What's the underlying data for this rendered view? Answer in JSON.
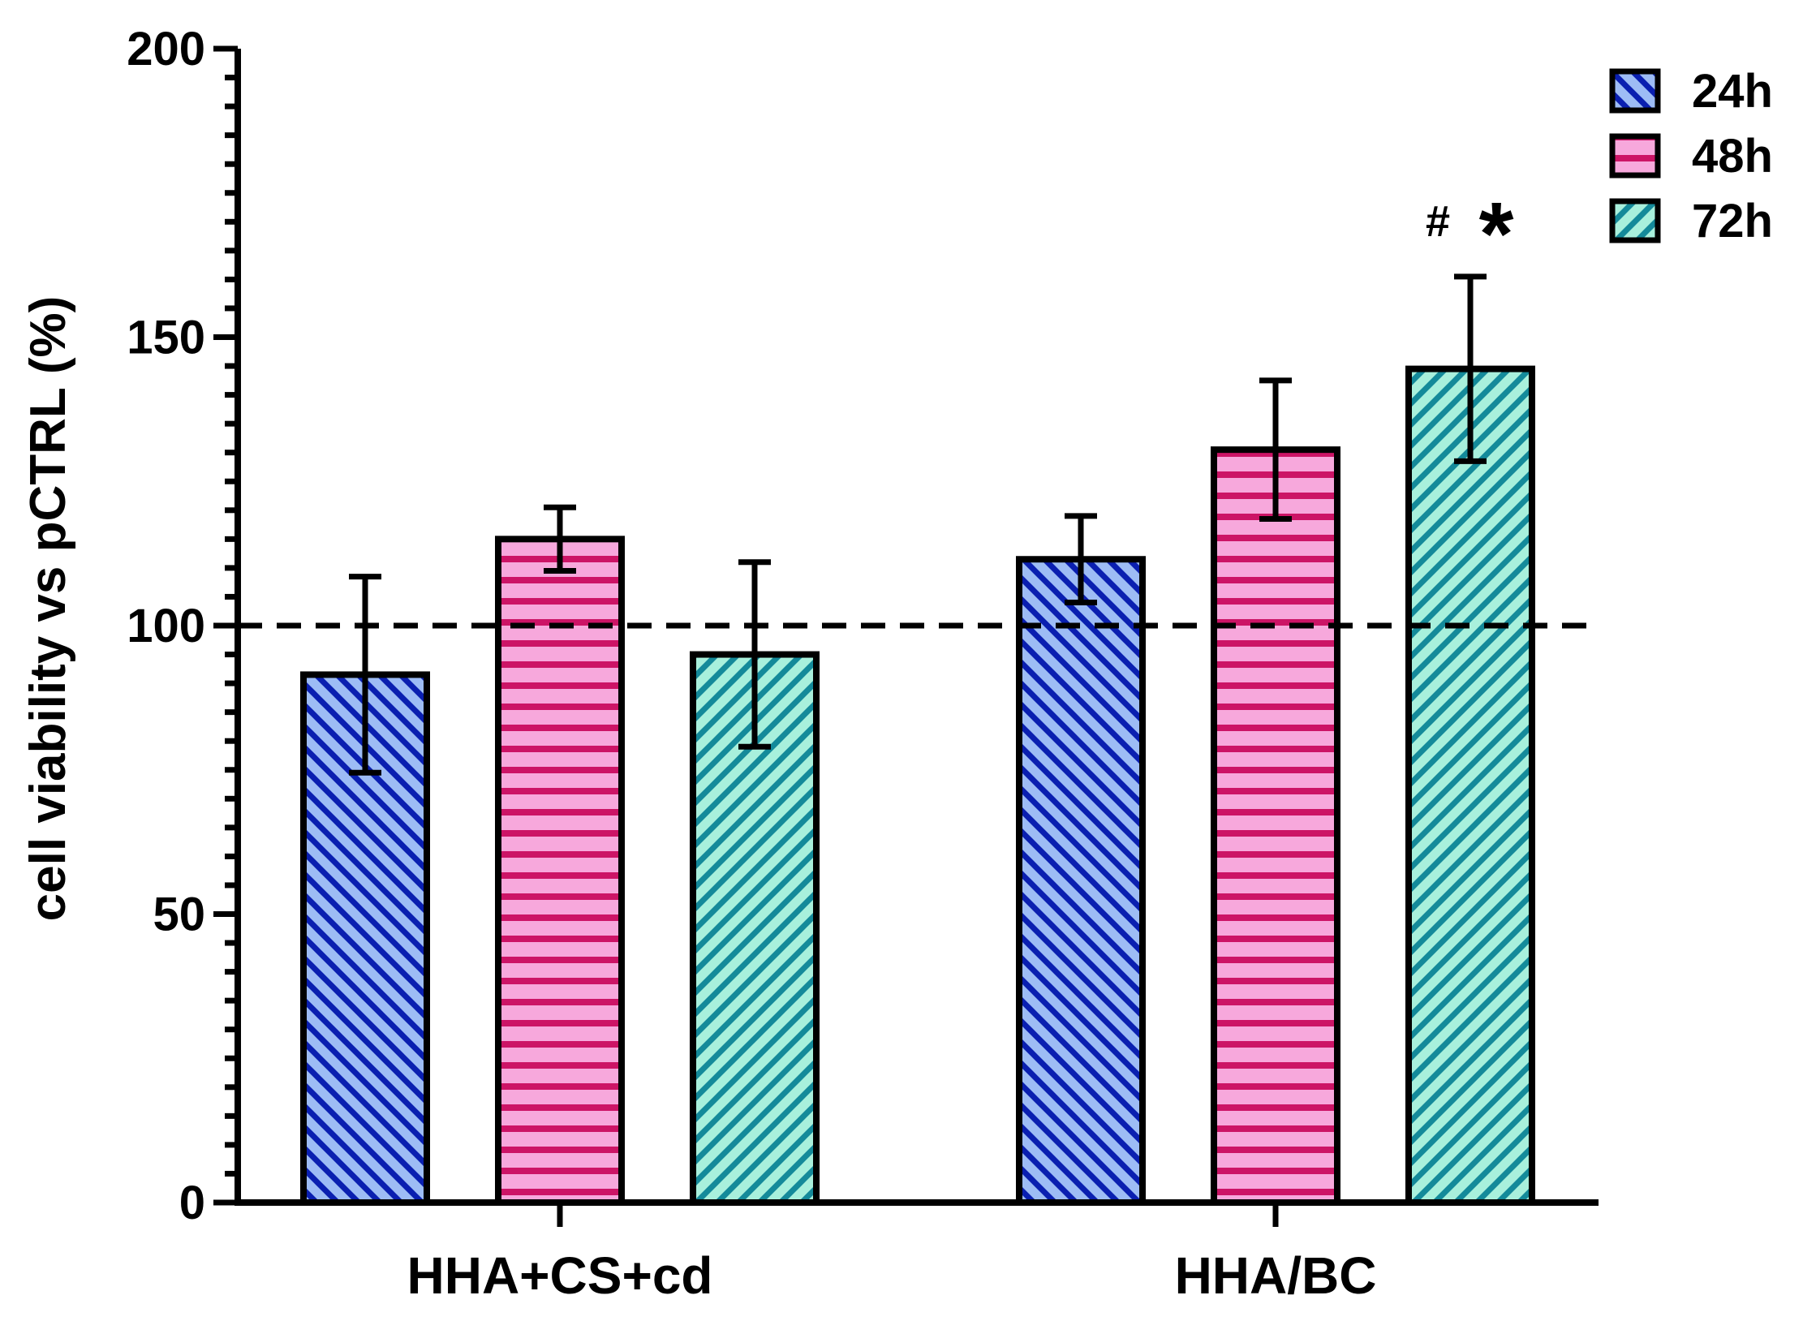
{
  "chart_data": {
    "type": "bar",
    "title": "",
    "xlabel": "",
    "ylabel": "cell viability vs pCTRL (%)",
    "ylim": [
      0,
      200
    ],
    "yticks": [
      0,
      50,
      100,
      150,
      200
    ],
    "reference_line": 100,
    "categories": [
      "HHA+CS+cd",
      "HHA/BC"
    ],
    "series": [
      {
        "name": "24h",
        "values": [
          91.5,
          111.5
        ],
        "errors": [
          17,
          7.5
        ],
        "fill": "#9dbcf5",
        "stroke": "#0a1fb0",
        "pattern": "diag-down"
      },
      {
        "name": "48h",
        "values": [
          115,
          130.5
        ],
        "errors": [
          5.5,
          12
        ],
        "fill": "#f7a8dc",
        "stroke": "#cc1466",
        "pattern": "horizontal"
      },
      {
        "name": "72h",
        "values": [
          95,
          144.5
        ],
        "errors": [
          16,
          16
        ],
        "fill": "#a8f0dc",
        "stroke": "#148a9a",
        "pattern": "diag-up"
      }
    ],
    "annotations": [
      {
        "text": "#",
        "category": "HHA/BC",
        "series": "72h"
      },
      {
        "text": "*",
        "category": "HHA/BC",
        "series": "72h"
      }
    ],
    "legend_position": "top-right",
    "grid": false
  }
}
